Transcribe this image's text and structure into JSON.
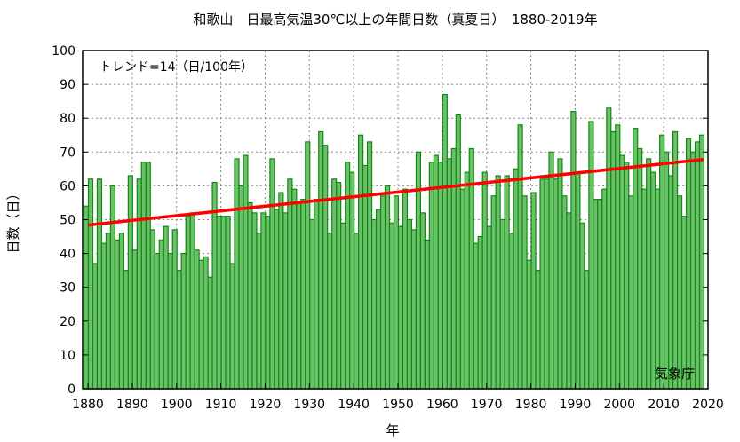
{
  "chart_data": {
    "type": "bar",
    "title": "和歌山　日最高気温30℃以上の年間日数（真夏日）　1880-2019年",
    "xlabel": "年",
    "ylabel": "日数（日）",
    "ylim": [
      0,
      100
    ],
    "xlim": [
      1880,
      2020
    ],
    "yticks": [
      0,
      10,
      20,
      30,
      40,
      50,
      60,
      70,
      80,
      90,
      100
    ],
    "xticks": [
      1880,
      1890,
      1900,
      1910,
      1920,
      1930,
      1940,
      1950,
      1960,
      1970,
      1980,
      1990,
      2000,
      2010,
      2020
    ],
    "grid": true,
    "annotation": "トレンド=14（日/100年）",
    "source": "気象庁",
    "start_year": 1880,
    "values": [
      54,
      62,
      37,
      62,
      43,
      46,
      60,
      44,
      46,
      35,
      63,
      41,
      62,
      67,
      67,
      47,
      40,
      44,
      48,
      40,
      47,
      35,
      40,
      51,
      52,
      41,
      38,
      39,
      33,
      61,
      51,
      51,
      51,
      37,
      68,
      60,
      69,
      55,
      52,
      46,
      52,
      51,
      68,
      53,
      58,
      52,
      62,
      59,
      55,
      56,
      73,
      50,
      56,
      76,
      72,
      46,
      62,
      61,
      49,
      67,
      64,
      46,
      75,
      66,
      73,
      50,
      53,
      57,
      60,
      49,
      57,
      48,
      59,
      50,
      47,
      70,
      52,
      44,
      67,
      69,
      67,
      87,
      68,
      71,
      81,
      59,
      64,
      71,
      43,
      45,
      64,
      48,
      57,
      63,
      50,
      63,
      46,
      65,
      78,
      57,
      38,
      58,
      35,
      62,
      62,
      70,
      62,
      68,
      57,
      52,
      82,
      64,
      49,
      35,
      79,
      56,
      56,
      59,
      83,
      76,
      78,
      69,
      67,
      57,
      77,
      71,
      59,
      68,
      64,
      59,
      75,
      70,
      63,
      76,
      57,
      51,
      74,
      70,
      73,
      75
    ],
    "trend": {
      "start_year": 1880,
      "start_value": 48.4,
      "end_year": 2019,
      "end_value": 67.8,
      "slope_per_100y": 14
    },
    "colors": {
      "bar_fill": "#6cc06c",
      "bar_edge": "#0f8a0f",
      "trend": "#ff0000"
    }
  }
}
